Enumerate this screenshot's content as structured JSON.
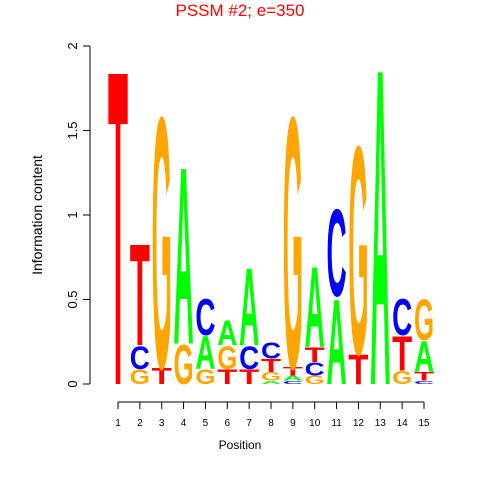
{
  "chart_data": {
    "type": "logo",
    "title": "PSSM #2; e=350",
    "title_color": "#ff0000",
    "xlabel": "Position",
    "ylabel": "Information content",
    "x": [
      1,
      2,
      3,
      4,
      5,
      6,
      7,
      8,
      9,
      10,
      11,
      12,
      13,
      14,
      15
    ],
    "xlim": [
      1,
      15
    ],
    "xticks": [
      1,
      2,
      3,
      4,
      5,
      6,
      7,
      8,
      9,
      10,
      11,
      12,
      13,
      14,
      15
    ],
    "ylim": [
      0,
      2
    ],
    "yticks": [
      0,
      0.5,
      1,
      1.5,
      2
    ],
    "series": [
      {
        "name": "A",
        "color": "#00ff00",
        "values": [
          0,
          0,
          0,
          1.08,
          0.2,
          0.15,
          0.47,
          0.02,
          0.03,
          0.49,
          0.52,
          0,
          1.93,
          0,
          0.19
        ]
      },
      {
        "name": "C",
        "color": "#0000ff",
        "values": [
          0,
          0.14,
          0,
          0,
          0.22,
          0,
          0.14,
          0.1,
          0.02,
          0.08,
          0.53,
          0,
          0,
          0.22,
          0.02
        ]
      },
      {
        "name": "G",
        "color": "#ffa500",
        "values": [
          0,
          0.09,
          1.53,
          0.24,
          0.09,
          0.14,
          0,
          0.05,
          1.53,
          0.05,
          0,
          1.27,
          0,
          0.08,
          0.25
        ]
      },
      {
        "name": "T",
        "color": "#ff0000",
        "values": [
          1.92,
          0.62,
          0.1,
          0,
          0,
          0.09,
          0.09,
          0.08,
          0.05,
          0.09,
          0,
          0.18,
          0,
          0.21,
          0.05
        ]
      }
    ]
  }
}
